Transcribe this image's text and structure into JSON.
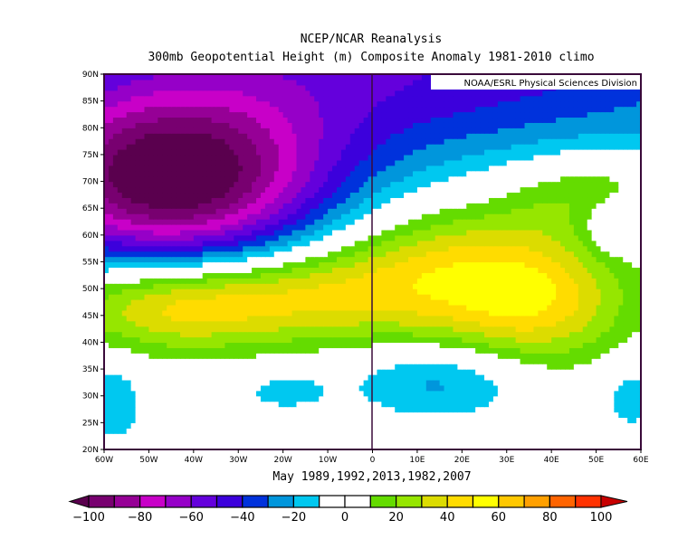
{
  "chart_data": {
    "type": "heatmap",
    "title": "NCEP/NCAR Reanalysis",
    "subtitle": "300mb Geopotential Height (m) Composite Anomaly 1981-2010 climo",
    "credit": "NOAA/ESRL Physical Sciences Division",
    "xlabel": "May 1989,1992,2013,1982,2007",
    "xlim": [
      -60,
      60
    ],
    "ylim": [
      20,
      90
    ],
    "x_ticks": [
      "60W",
      "50W",
      "40W",
      "30W",
      "20W",
      "10W",
      "0",
      "10E",
      "20E",
      "30E",
      "40E",
      "50E",
      "60E"
    ],
    "y_ticks": [
      "20N",
      "25N",
      "30N",
      "35N",
      "40N",
      "45N",
      "50N",
      "55N",
      "60N",
      "65N",
      "70N",
      "75N",
      "80N",
      "85N",
      "90N"
    ],
    "colorbar": {
      "levels": [
        -100,
        -90,
        -80,
        -70,
        -60,
        -50,
        -40,
        -30,
        -20,
        -10,
        0,
        10,
        20,
        30,
        40,
        50,
        60,
        70,
        80,
        90,
        100
      ],
      "tick_labels": [
        "-100",
        "-80",
        "-60",
        "-40",
        "-20",
        "0",
        "20",
        "40",
        "60",
        "80",
        "100"
      ],
      "colors": [
        "#5a004e",
        "#780070",
        "#960096",
        "#c800c8",
        "#9600c8",
        "#6400dc",
        "#3c00dc",
        "#0032dc",
        "#0096dc",
        "#00c8f0",
        "#ffffff",
        "#ffffff",
        "#64dc00",
        "#96e600",
        "#dcdc00",
        "#ffdc00",
        "#ffff00",
        "#ffc800",
        "#ffa000",
        "#ff6400",
        "#ff3200",
        "#c80000"
      ]
    },
    "anomaly_centers": [
      {
        "lon": -45,
        "lat": 70,
        "value": -105,
        "slon": 24,
        "slat": 11
      },
      {
        "lon": 0,
        "lat": 92,
        "value": -50,
        "slon": 70,
        "slat": 14
      },
      {
        "lon": -45,
        "lat": 47,
        "value": 45,
        "slon": 18,
        "slat": 6
      },
      {
        "lon": -15,
        "lat": 49,
        "value": 30,
        "slon": 18,
        "slat": 6
      },
      {
        "lon": 18,
        "lat": 53,
        "value": 42,
        "slon": 20,
        "slat": 9
      },
      {
        "lon": 38,
        "lat": 47,
        "value": 32,
        "slon": 14,
        "slat": 8
      },
      {
        "lon": 50,
        "lat": 68,
        "value": 25,
        "slon": 15,
        "slat": 6
      },
      {
        "lon": 15,
        "lat": 33,
        "value": -25,
        "slon": 14,
        "slat": 5
      },
      {
        "lon": -58,
        "lat": 29,
        "value": -18,
        "slon": 5,
        "slat": 6
      },
      {
        "lon": -20,
        "lat": 31,
        "value": -14,
        "slon": 8,
        "slat": 3
      },
      {
        "lon": 58,
        "lat": 30,
        "value": -16,
        "slon": 5,
        "slat": 5
      },
      {
        "lon": 55,
        "lat": 62,
        "value": -25,
        "slon": 6,
        "slat": 4
      }
    ]
  }
}
